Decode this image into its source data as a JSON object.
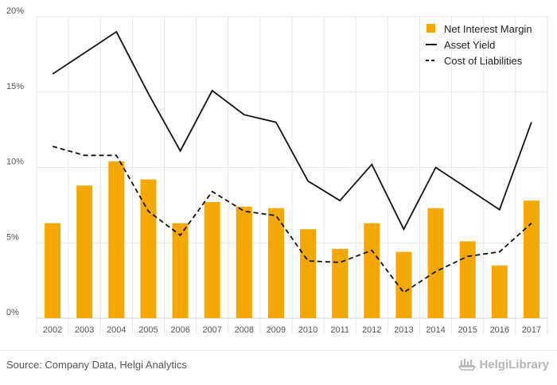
{
  "chart_data": {
    "type": "bar",
    "categories": [
      "2002",
      "2003",
      "2004",
      "2005",
      "2006",
      "2007",
      "2008",
      "2009",
      "2010",
      "2011",
      "2012",
      "2013",
      "2014",
      "2015",
      "2016",
      "2017"
    ],
    "ylim": [
      0,
      20
    ],
    "y_ticks": [
      "0%",
      "5%",
      "10%",
      "15%",
      "20%"
    ],
    "grid": true,
    "legend_position": "top-right",
    "series": [
      {
        "name": "Net Interest Margin",
        "kind": "bar",
        "color": "#f5a800",
        "values": [
          6.3,
          8.8,
          10.4,
          9.2,
          6.3,
          7.7,
          7.4,
          7.3,
          5.9,
          4.6,
          6.3,
          4.4,
          7.3,
          5.1,
          3.5,
          7.8
        ]
      },
      {
        "name": "Asset Yield",
        "kind": "line",
        "style": "solid",
        "color": "#111111",
        "values": [
          16.2,
          17.6,
          19.0,
          14.9,
          11.1,
          15.1,
          13.5,
          13.0,
          9.1,
          7.8,
          10.2,
          5.9,
          10.0,
          8.6,
          7.2,
          13.0
        ]
      },
      {
        "name": "Cost of Liabilities",
        "kind": "line",
        "style": "dashed",
        "color": "#111111",
        "values": [
          11.4,
          10.8,
          10.8,
          7.1,
          5.5,
          8.4,
          7.1,
          6.8,
          3.8,
          3.7,
          4.5,
          1.7,
          3.1,
          4.1,
          4.4,
          6.3
        ]
      }
    ]
  },
  "footer": {
    "source": "Source: Company Data, Helgi Analytics",
    "brand": "HelgiLibrary"
  },
  "colors": {
    "bar": "#f5a800",
    "line": "#111111",
    "grid": "#e6e6e6",
    "brand": "#b5b5b5"
  }
}
